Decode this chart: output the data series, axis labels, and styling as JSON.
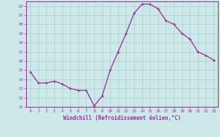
{
  "x": [
    0,
    1,
    2,
    3,
    4,
    5,
    6,
    7,
    8,
    9,
    10,
    11,
    12,
    13,
    14,
    15,
    16,
    17,
    18,
    19,
    20,
    21,
    22,
    23
  ],
  "y": [
    14.8,
    13.6,
    13.6,
    13.8,
    13.5,
    13.0,
    12.8,
    12.8,
    11.1,
    12.2,
    15.0,
    17.0,
    19.0,
    21.2,
    22.2,
    22.2,
    21.7,
    20.4,
    20.0,
    19.0,
    18.4,
    17.0,
    16.6,
    16.1
  ],
  "line_color": "#993399",
  "marker": "+",
  "marker_size": 3,
  "bg_color": "#cce8e8",
  "grid_color": "#aacccc",
  "xlabel": "Windchill (Refroidissement éolien,°C)",
  "xlabel_color": "#993399",
  "tick_color": "#993399",
  "ylim": [
    11,
    22.5
  ],
  "yticks": [
    11,
    12,
    13,
    14,
    15,
    16,
    17,
    18,
    19,
    20,
    21,
    22
  ],
  "xticks": [
    0,
    1,
    2,
    3,
    4,
    5,
    6,
    7,
    8,
    9,
    10,
    11,
    12,
    13,
    14,
    15,
    16,
    17,
    18,
    19,
    20,
    21,
    22,
    23
  ],
  "xlim": [
    -0.5,
    23.5
  ],
  "border_color": "#993399",
  "line_width": 1.0,
  "marker_color": "#993399"
}
